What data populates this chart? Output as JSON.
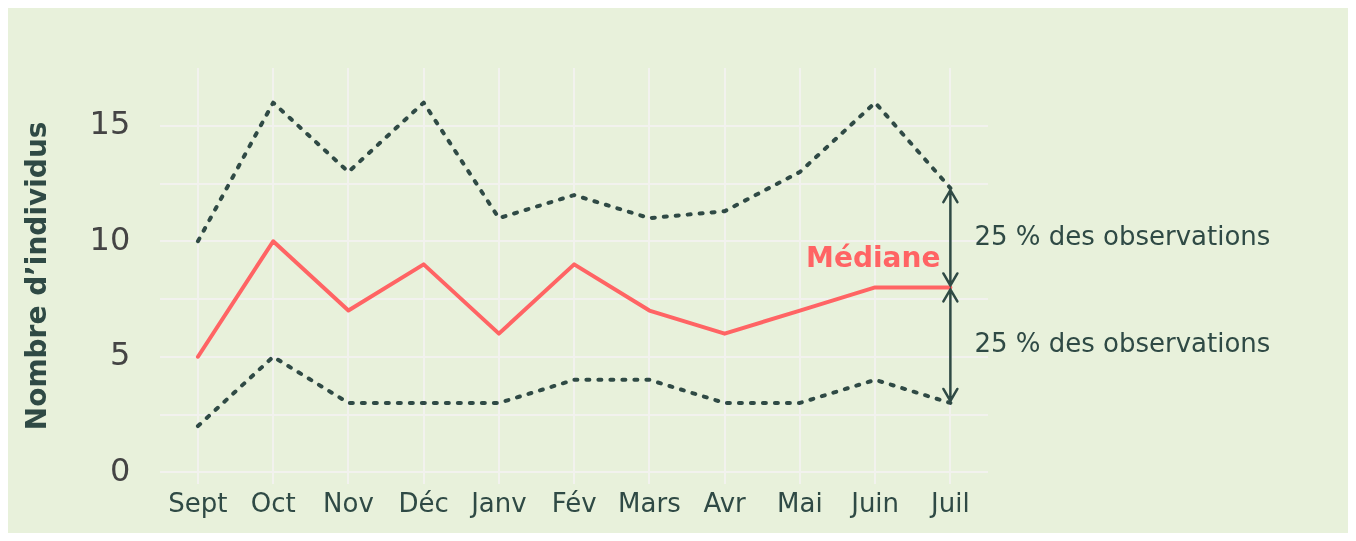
{
  "chart_data": {
    "type": "line",
    "ylabel": "Nombre d’individus",
    "categories": [
      "Sept",
      "Oct",
      "Nov",
      "Déc",
      "Janv",
      "Fév",
      "Mars",
      "Avr",
      "Mai",
      "Juin",
      "Juil"
    ],
    "series": [
      {
        "color": "#2f4a45",
        "line_style": "dotted",
        "values": [
          10,
          16,
          13,
          16,
          11,
          12,
          11,
          11.3,
          13,
          16,
          12.3
        ]
      },
      {
        "name": "Médiane",
        "color": "#ff6464",
        "line_style": "solid",
        "values": [
          5,
          10,
          7,
          9,
          6,
          9,
          7,
          6,
          7,
          8,
          8
        ]
      },
      {
        "color": "#2f4a45",
        "line_style": "dotted",
        "values": [
          2,
          5,
          3,
          3,
          3,
          4,
          4,
          3,
          3,
          4,
          3
        ]
      }
    ],
    "ylim": [
      -0.5,
      17.5
    ],
    "yticks": [
      0,
      {
        "value": 2.5,
        "label": null
      },
      5,
      {
        "value": 7.5,
        "label": null
      },
      10,
      {
        "value": 12.5,
        "label": null
      },
      15
    ],
    "grid": true,
    "legend": false,
    "marker": "none",
    "annotations": [
      "25 % des observations",
      "25 % des observations"
    ]
  }
}
